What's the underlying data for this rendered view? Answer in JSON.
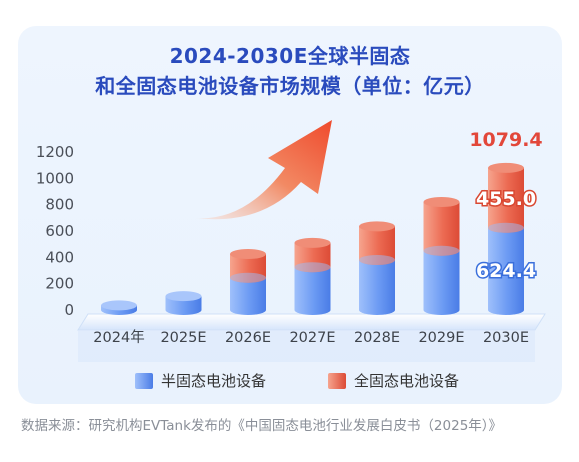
{
  "title_line1": "2024-2030E全球半固态",
  "title_line2": "和全固态电池设备市场规模（单位：亿元）",
  "source": "数据来源：研究机构EVTank发布的《中国固态电池行业发展白皮书（2025年）》",
  "chart_data": {
    "type": "bar",
    "stacked": true,
    "categories": [
      "2024年",
      "2025E",
      "2026E",
      "2027E",
      "2028E",
      "2029E",
      "2030E"
    ],
    "series": [
      {
        "name": "半固态电池设备",
        "values": [
          35,
          105,
          245,
          325,
          380,
          450,
          624.4
        ],
        "color": "#5b8ef0"
      },
      {
        "name": "全固态电池设备",
        "values": [
          0,
          0,
          180,
          185,
          255,
          370,
          455.0
        ],
        "color": "#ec5f49"
      }
    ],
    "totals_labels": {
      "2030E": "1079.4"
    },
    "segment_labels": {
      "2030E": [
        "624.4",
        "455.0"
      ]
    },
    "yticks": [
      "0",
      "200",
      "400",
      "600",
      "800",
      "1000",
      "1200"
    ],
    "ylim": [
      0,
      1200
    ],
    "legend_position": "bottom"
  }
}
